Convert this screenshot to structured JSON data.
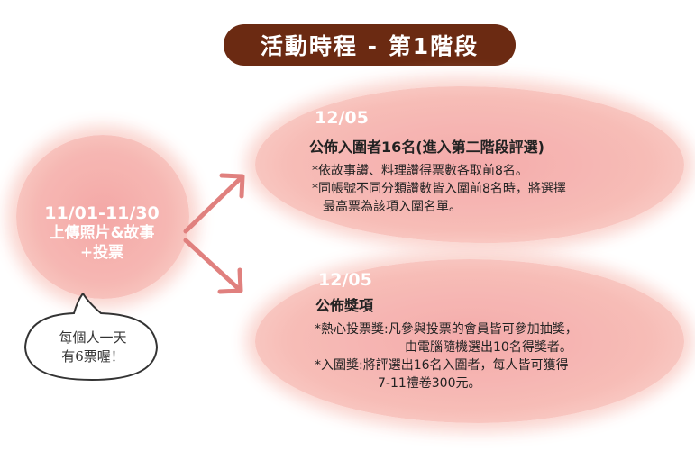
{
  "header": {
    "title": "活動時程 - 第1階段"
  },
  "phase1": {
    "date": "11/01-11/30",
    "line1": "上傳照片&故事",
    "line2": "+投票"
  },
  "bubble": {
    "line1": "每個人一天",
    "line2": "有6票喔！"
  },
  "card1": {
    "date": "12/05",
    "title": "公佈入圍者16名(進入第二階段評選)",
    "lines": [
      "*依故事讚、料理讚得票數各取前8名。",
      "*同帳號不同分類讚數皆入圍前8名時，將選擇",
      "最高票為該項入圍名單。"
    ]
  },
  "card2": {
    "date": "12/05",
    "title": "公佈獎項",
    "lines": [
      "*熱心投票獎:凡參與投票的會員皆可參加抽獎，",
      "由電腦隨機選出10名得獎者。",
      "*入圍獎:將評選出16名入圍者，每人皆可獲得",
      "7-11禮卷300元。"
    ]
  },
  "colors": {
    "title_bg": "#6b2a12",
    "blob": "#f6b8b2",
    "arrow": "#e0807e"
  }
}
